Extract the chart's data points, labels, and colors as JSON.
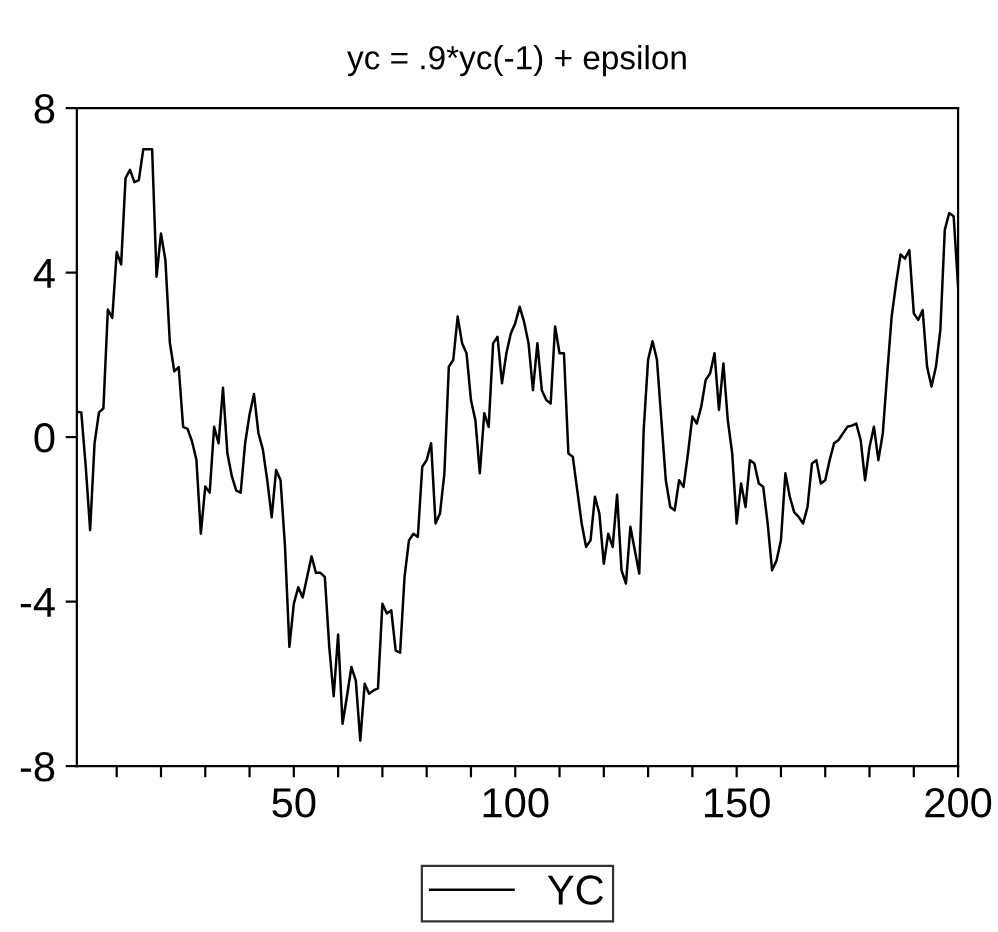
{
  "chart_data": {
    "type": "line",
    "title": "yc = .9*yc(-1) + epsilon",
    "x": [
      1,
      2,
      3,
      4,
      5,
      6,
      7,
      8,
      9,
      10,
      11,
      12,
      13,
      14,
      15,
      16,
      17,
      18,
      19,
      20,
      21,
      22,
      23,
      24,
      25,
      26,
      27,
      28,
      29,
      30,
      31,
      32,
      33,
      34,
      35,
      36,
      37,
      38,
      39,
      40,
      41,
      42,
      43,
      44,
      45,
      46,
      47,
      48,
      49,
      50,
      51,
      52,
      53,
      54,
      55,
      56,
      57,
      58,
      59,
      60,
      61,
      62,
      63,
      64,
      65,
      66,
      67,
      68,
      69,
      70,
      71,
      72,
      73,
      74,
      75,
      76,
      77,
      78,
      79,
      80,
      81,
      82,
      83,
      84,
      85,
      86,
      87,
      88,
      89,
      90,
      91,
      92,
      93,
      94,
      95,
      96,
      97,
      98,
      99,
      100,
      101,
      102,
      103,
      104,
      105,
      106,
      107,
      108,
      109,
      110,
      111,
      112,
      113,
      114,
      115,
      116,
      117,
      118,
      119,
      120,
      121,
      122,
      123,
      124,
      125,
      126,
      127,
      128,
      129,
      130,
      131,
      132,
      133,
      134,
      135,
      136,
      137,
      138,
      139,
      140,
      141,
      142,
      143,
      144,
      145,
      146,
      147,
      148,
      149,
      150,
      151,
      152,
      153,
      154,
      155,
      156,
      157,
      158,
      159,
      160,
      161,
      162,
      163,
      164,
      165,
      166,
      167,
      168,
      169,
      170,
      171,
      172,
      173,
      174,
      175,
      176,
      177,
      178,
      179,
      180,
      181,
      182,
      183,
      184,
      185,
      186,
      187,
      188,
      189,
      190,
      191,
      192,
      193,
      194,
      195,
      196,
      197,
      198,
      199,
      200
    ],
    "series": [
      {
        "name": "YC",
        "color": "#000000",
        "values": [
          0.62,
          0.6,
          -0.7,
          -2.26,
          -0.15,
          0.6,
          0.7,
          3.1,
          2.9,
          4.5,
          4.2,
          6.3,
          6.5,
          6.2,
          6.25,
          7.0,
          7.0,
          7.0,
          3.9,
          4.95,
          4.3,
          2.3,
          1.6,
          1.7,
          0.25,
          0.2,
          -0.1,
          -0.55,
          -2.35,
          -1.2,
          -1.35,
          0.25,
          -0.15,
          1.2,
          -0.4,
          -0.95,
          -1.3,
          -1.35,
          -0.15,
          0.55,
          1.05,
          0.1,
          -0.3,
          -1.05,
          -1.95,
          -0.8,
          -1.05,
          -2.65,
          -5.1,
          -4.05,
          -3.65,
          -3.9,
          -3.4,
          -2.9,
          -3.3,
          -3.3,
          -3.4,
          -5.1,
          -6.3,
          -4.8,
          -6.97,
          -6.3,
          -5.59,
          -5.92,
          -7.38,
          -6.0,
          -6.24,
          -6.16,
          -6.11,
          -4.05,
          -4.29,
          -4.21,
          -5.19,
          -5.24,
          -3.4,
          -2.51,
          -2.35,
          -2.43,
          -0.72,
          -0.56,
          -0.15,
          -2.1,
          -1.86,
          -0.88,
          1.71,
          1.88,
          2.93,
          2.28,
          2.04,
          0.9,
          0.41,
          -0.88,
          0.58,
          0.25,
          2.28,
          2.44,
          1.31,
          2.04,
          2.52,
          2.77,
          3.17,
          2.8,
          2.28,
          1.14,
          2.28,
          1.14,
          0.9,
          0.82,
          2.69,
          2.04,
          2.04,
          -0.4,
          -0.48,
          -1.29,
          -2.1,
          -2.67,
          -2.51,
          -1.45,
          -1.86,
          -3.08,
          -2.35,
          -2.67,
          -1.4,
          -3.24,
          -3.56,
          -2.18,
          -2.75,
          -3.32,
          0.17,
          1.88,
          2.33,
          1.88,
          0.41,
          -1.05,
          -1.7,
          -1.78,
          -1.05,
          -1.21,
          -0.4,
          0.5,
          0.33,
          0.74,
          1.39,
          1.55,
          2.04,
          0.66,
          1.79,
          0.41,
          -0.4,
          -2.1,
          -1.13,
          -1.7,
          -0.56,
          -0.64,
          -1.13,
          -1.21,
          -2.1,
          -3.24,
          -3.0,
          -2.51,
          -0.88,
          -1.45,
          -1.83,
          -1.94,
          -2.1,
          -1.7,
          -0.64,
          -0.56,
          -1.13,
          -1.05,
          -0.56,
          -0.15,
          -0.07,
          0.09,
          0.25,
          0.28,
          0.33,
          -0.07,
          -1.05,
          -0.24,
          0.25,
          -0.56,
          0.09,
          1.55,
          2.93,
          3.74,
          4.44,
          4.34,
          4.55,
          3.01,
          2.85,
          3.09,
          1.71,
          1.23,
          1.71,
          2.61,
          5.04,
          5.45,
          5.37,
          3.66
        ]
      }
    ],
    "xlim": [
      1,
      200
    ],
    "xticks": [
      {
        "value": 10,
        "label": null
      },
      {
        "value": 20,
        "label": null
      },
      {
        "value": 30,
        "label": null
      },
      {
        "value": 40,
        "label": null
      },
      50,
      {
        "value": 60,
        "label": null
      },
      {
        "value": 70,
        "label": null
      },
      {
        "value": 80,
        "label": null
      },
      {
        "value": 90,
        "label": null
      },
      100,
      {
        "value": 110,
        "label": null
      },
      {
        "value": 120,
        "label": null
      },
      {
        "value": 130,
        "label": null
      },
      {
        "value": 140,
        "label": null
      },
      150,
      {
        "value": 160,
        "label": null
      },
      {
        "value": 170,
        "label": null
      },
      {
        "value": 180,
        "label": null
      },
      {
        "value": 190,
        "label": null
      },
      200
    ],
    "ylim": [
      -8,
      8
    ],
    "yticks": [
      -8,
      -4,
      0,
      4,
      8
    ],
    "grid": false,
    "legend": "bottom",
    "marker": "none",
    "line_style": "solid"
  }
}
